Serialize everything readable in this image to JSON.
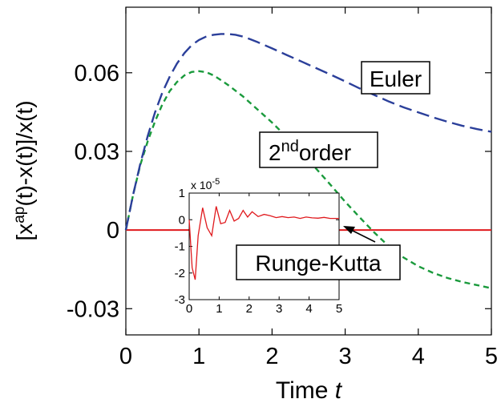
{
  "chart_data": [
    {
      "type": "line",
      "xlabel": "Time",
      "xlabel_var": "t",
      "ylabel": "[x^ap(t)-x(t)]/x(t)",
      "ylabel_parts": {
        "pre": "[x",
        "sup": "ap",
        "post": "(t)-x(t)]/x(t)"
      },
      "xlim": [
        0,
        5
      ],
      "ylim": [
        -0.04,
        0.085
      ],
      "xticks": [
        0,
        1,
        2,
        3,
        4,
        5
      ],
      "xtick_labels": [
        "0",
        "1",
        "2",
        "3",
        "4",
        "5"
      ],
      "yticks": [
        -0.03,
        0,
        0.03,
        0.06
      ],
      "ytick_labels": [
        "-0.03",
        "0",
        "0.03",
        "0.06"
      ],
      "grid": false,
      "series": [
        {
          "name": "Euler",
          "color": "#2b3f9a",
          "style": "dashed",
          "x": [
            0,
            0.1,
            0.2,
            0.3,
            0.4,
            0.5,
            0.6,
            0.7,
            0.8,
            0.9,
            1.0,
            1.1,
            1.2,
            1.3,
            1.4,
            1.5,
            1.6,
            1.7,
            1.8,
            2.0,
            2.2,
            2.4,
            2.6,
            2.8,
            3.0,
            3.2,
            3.4,
            3.6,
            3.8,
            4.0,
            4.2,
            4.4,
            4.6,
            4.8,
            5.0
          ],
          "y": [
            0,
            0.0135,
            0.0255,
            0.036,
            0.045,
            0.0525,
            0.0585,
            0.0635,
            0.0675,
            0.0705,
            0.0725,
            0.0738,
            0.0745,
            0.0748,
            0.0748,
            0.0745,
            0.0738,
            0.0728,
            0.0717,
            0.0693,
            0.0668,
            0.0643,
            0.0618,
            0.0593,
            0.0567,
            0.054,
            0.0515,
            0.049,
            0.0468,
            0.0449,
            0.043,
            0.0413,
            0.0398,
            0.0385,
            0.0375
          ]
        },
        {
          "name": "2nd order",
          "color": "#1a9a3c",
          "style": "dashed",
          "x": [
            0,
            0.1,
            0.2,
            0.3,
            0.4,
            0.5,
            0.6,
            0.7,
            0.8,
            0.9,
            1.0,
            1.1,
            1.2,
            1.3,
            1.4,
            1.6,
            1.8,
            2.0,
            2.2,
            2.4,
            2.6,
            2.8,
            3.0,
            3.2,
            3.4,
            3.6,
            3.8,
            4.0,
            4.2,
            4.4,
            4.6,
            4.8,
            5.0
          ],
          "y": [
            0,
            0.0135,
            0.025,
            0.034,
            0.0415,
            0.048,
            0.053,
            0.0565,
            0.059,
            0.0603,
            0.0606,
            0.0602,
            0.059,
            0.0572,
            0.0553,
            0.051,
            0.046,
            0.041,
            0.0355,
            0.0296,
            0.0235,
            0.0172,
            0.0108,
            0.0048,
            -0.001,
            -0.0063,
            -0.0105,
            -0.0138,
            -0.0163,
            -0.0183,
            -0.0198,
            -0.021,
            -0.0222
          ]
        },
        {
          "name": "Runge-Kutta",
          "color": "#e0191d",
          "style": "solid",
          "x": [
            0,
            5
          ],
          "y": [
            0,
            0
          ]
        }
      ],
      "annotations": [
        {
          "text": "Euler",
          "boxed": true
        },
        {
          "text_base": "2",
          "text_sup": "nd",
          "text_rest": "order",
          "boxed": true
        },
        {
          "text": "Runge-Kutta",
          "boxed": true,
          "arrow": true
        }
      ]
    },
    {
      "type": "line",
      "role": "inset",
      "xlim": [
        0,
        5
      ],
      "ylim": [
        -3,
        1
      ],
      "xticks": [
        0,
        1,
        2,
        3,
        4,
        5
      ],
      "xtick_labels": [
        "0",
        "1",
        "2",
        "3",
        "4",
        "5"
      ],
      "yticks": [
        -3,
        -2,
        -1,
        0,
        1
      ],
      "ytick_labels": [
        "-3",
        "-2",
        "-1",
        "0",
        "1"
      ],
      "exponent_label": {
        "base": "x 10",
        "exp": "-5"
      },
      "series": [
        {
          "name": "Runge-Kutta",
          "color": "#e0191d",
          "x": [
            0,
            0.1,
            0.2,
            0.3,
            0.45,
            0.6,
            0.75,
            0.9,
            1.05,
            1.2,
            1.35,
            1.5,
            1.65,
            1.8,
            1.95,
            2.1,
            2.3,
            2.5,
            2.7,
            2.9,
            3.1,
            3.3,
            3.5,
            3.7,
            3.9,
            4.1,
            4.3,
            4.5,
            4.7,
            5.0
          ],
          "y": [
            0,
            -1.8,
            -2.25,
            -0.6,
            0.45,
            -0.3,
            -0.6,
            0.5,
            -0.15,
            -0.1,
            0.35,
            -0.05,
            0.05,
            0.35,
            0.1,
            0.3,
            0.12,
            0.2,
            0.15,
            0.08,
            0.12,
            0.08,
            0.1,
            0.05,
            0.1,
            0.07,
            0.06,
            0.09,
            0.05,
            0.05
          ]
        }
      ]
    }
  ]
}
